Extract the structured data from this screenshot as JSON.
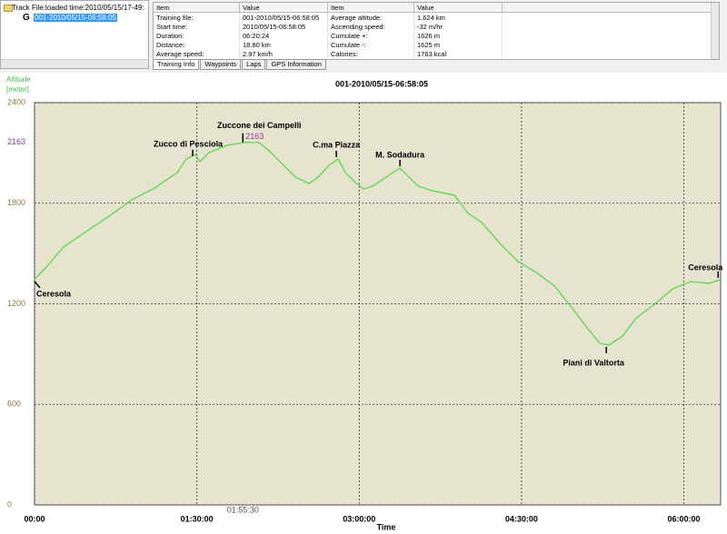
{
  "tree": {
    "root": "Track File:loaded time:2010/05/15/17-49:",
    "node": "001-2010/05/15-06:58:05"
  },
  "table": {
    "headers": [
      "Item",
      "Value",
      "Item",
      "Value"
    ],
    "rows": [
      [
        "Training file:",
        "001-2010/05/15-06:58:05",
        "Average altitude:",
        "1.624 km"
      ],
      [
        "Start time:",
        "2010/05/15-06:58:05",
        "Ascending speed:",
        "-32    m/hr"
      ],
      [
        "Duration:",
        "06:20:24",
        "Cumulate +:",
        "1626 m"
      ],
      [
        "Distance:",
        "18.80 km",
        "Cumulate -:",
        "1625 m"
      ],
      [
        "Average speed:",
        "2.97 km/h",
        "Calories:",
        "1763 kcal"
      ]
    ]
  },
  "tabs": [
    "Training Info",
    "Waypoints",
    "Laps",
    "GPS Information"
  ],
  "chart_data": {
    "type": "line",
    "title": "001-2010/05/15-06:58:05",
    "y_label": "Altitude",
    "y_unit": "[meter]",
    "x_label": "Time",
    "background": "#e6e3ce",
    "grid": true,
    "xlim": [
      0,
      22824
    ],
    "ylim": [
      0,
      2400
    ],
    "xticks": [
      {
        "value": 0,
        "label": "00:00"
      },
      {
        "value": 5400,
        "label": "01:30:00"
      },
      {
        "value": 10800,
        "label": "03:00:00"
      },
      {
        "value": 16200,
        "label": "04:30:00"
      },
      {
        "value": 21600,
        "label": "06:00:00"
      }
    ],
    "yticks": [
      0,
      600,
      1200,
      1800,
      2400
    ],
    "marker": {
      "x": {
        "value": 6930,
        "label": "01:55:30"
      },
      "y": 2163,
      "color": "#993399"
    },
    "series": [
      {
        "name": "Altitude",
        "color": "#66dd55",
        "x": [
          0,
          363,
          968,
          1724,
          2480,
          3236,
          3992,
          4748,
          5050,
          5352,
          5504,
          5806,
          6410,
          7015,
          7469,
          7771,
          8225,
          8678,
          9132,
          9434,
          9798,
          10100,
          10342,
          10644,
          10946,
          11249,
          11702,
          12156,
          12458,
          12761,
          13214,
          13970,
          14424,
          14878,
          15482,
          16087,
          16692,
          17297,
          17902,
          18355,
          18809,
          19111,
          19565,
          20018,
          20623,
          21228,
          21833,
          22438,
          22824
        ],
        "values": [
          1344,
          1414,
          1539,
          1631,
          1723,
          1820,
          1891,
          1983,
          2064,
          2091,
          2048,
          2102,
          2146,
          2163,
          2162,
          2118,
          2037,
          1956,
          1918,
          1956,
          2026,
          2064,
          1983,
          1929,
          1885,
          1902,
          1956,
          2010,
          1956,
          1902,
          1875,
          1847,
          1739,
          1685,
          1560,
          1452,
          1387,
          1306,
          1170,
          1062,
          964,
          954,
          1008,
          1116,
          1197,
          1289,
          1333,
          1322,
          1344
        ]
      }
    ],
    "annotations": [
      {
        "text": "Ceresola",
        "x": 0,
        "y": 1344
      },
      {
        "text": "Zucco di Pesciola",
        "x": 5262,
        "y": 2070
      },
      {
        "text": "Zuccone dei Campelli",
        "x": 6930,
        "y": 2163
      },
      {
        "text": "C.ma Piazza",
        "x": 10040,
        "y": 2064
      },
      {
        "text": "M. Sodadura",
        "x": 12156,
        "y": 2010
      },
      {
        "text": "Piani di Valtorta",
        "x": 19020,
        "y": 954
      },
      {
        "text": "Ceresola",
        "x": 22740,
        "y": 1344
      }
    ]
  }
}
